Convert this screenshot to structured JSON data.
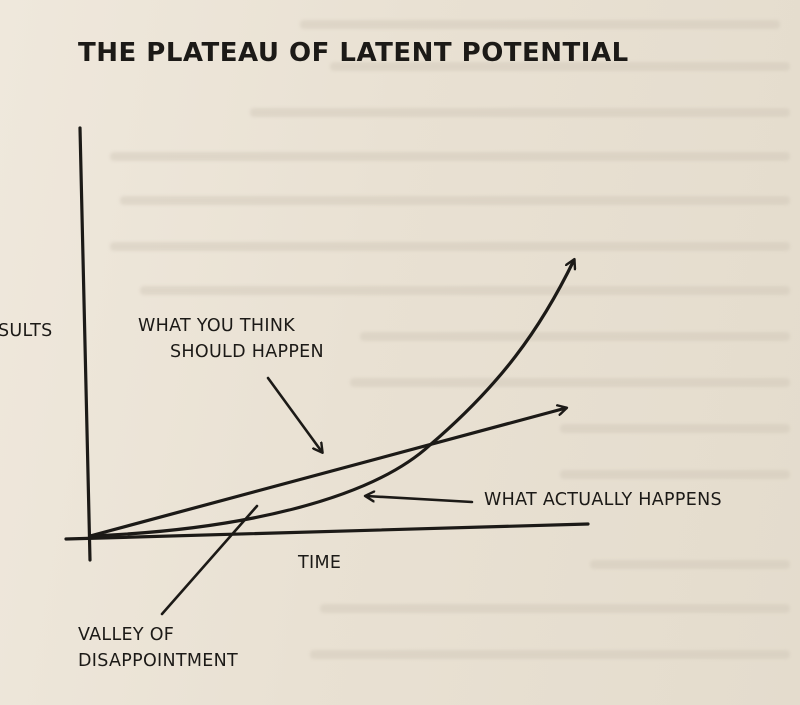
{
  "title": "THE PLATEAU OF LATENT POTENTIAL",
  "labels": {
    "y_axis": "SULTS",
    "x_axis": "TIME",
    "expected_line1": "WHAT YOU THINK",
    "expected_line2": "SHOULD HAPPEN",
    "actual": "WHAT ACTUALLY HAPPENS",
    "valley_line1": "VALLEY OF",
    "valley_line2": "DISAPPOINTMENT"
  },
  "colors": {
    "ink": "#1c1a17",
    "paper": "#ebe3d6"
  }
}
